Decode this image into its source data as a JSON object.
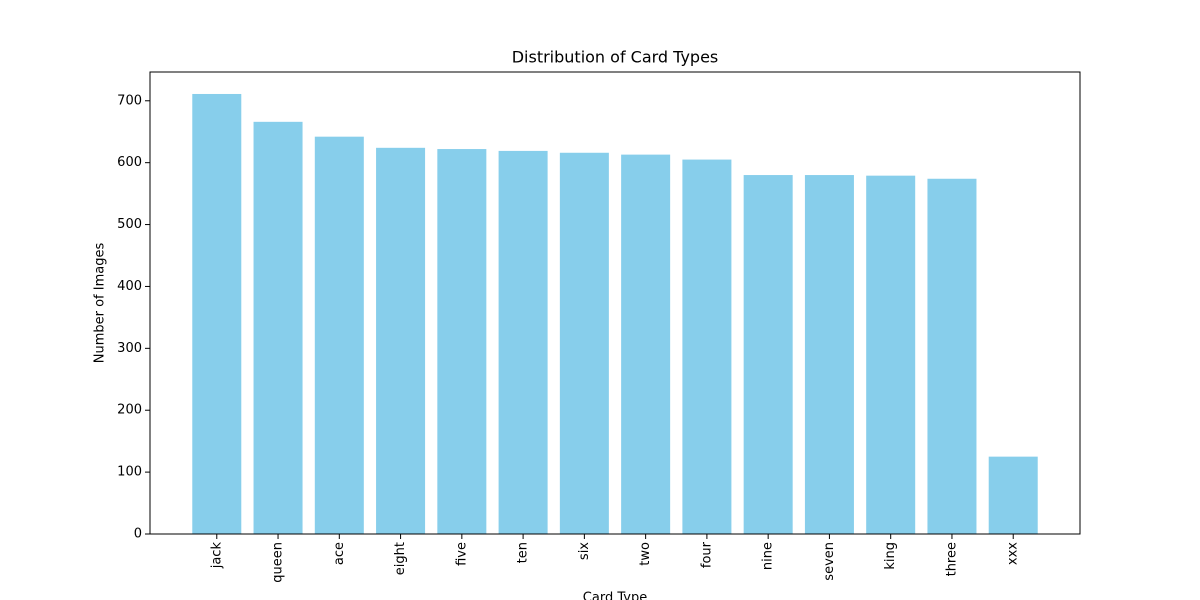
{
  "chart_data": {
    "type": "bar",
    "title": "Distribution of Card Types",
    "x_label": "Card Type",
    "y_label": "Number of Images",
    "categories": [
      "jack",
      "queen",
      "ace",
      "eight",
      "five",
      "ten",
      "six",
      "two",
      "four",
      "nine",
      "seven",
      "king",
      "three",
      "xxx"
    ],
    "values": [
      711,
      666,
      642,
      624,
      622,
      619,
      616,
      613,
      605,
      580,
      580,
      579,
      574,
      125
    ],
    "color": "#87ceeb",
    "ylim": [
      0,
      746.5
    ],
    "yticks": [
      0,
      100,
      200,
      300,
      400,
      500,
      600,
      700
    ],
    "grid": false
  }
}
